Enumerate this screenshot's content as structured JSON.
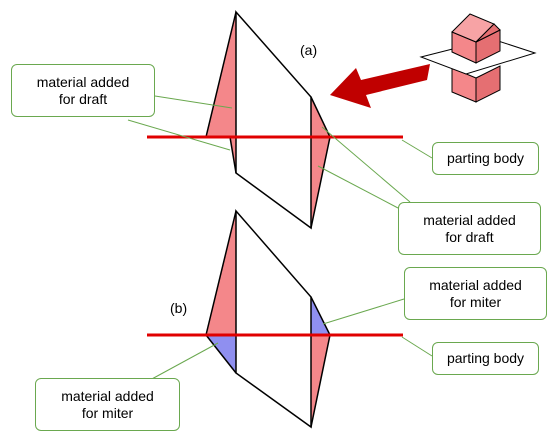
{
  "tags": {
    "a": "(a)",
    "b": "(b)"
  },
  "callouts": {
    "draft_left": {
      "line1": "material added",
      "line2": "for draft"
    },
    "parting_top": {
      "line1": "parting body"
    },
    "draft_right": {
      "line1": "material added",
      "line2": "for draft"
    },
    "miter_right": {
      "line1": "material added",
      "line2": "for miter"
    },
    "parting_bottom": {
      "line1": "parting body"
    },
    "miter_left": {
      "line1": "material added",
      "line2": "for miter"
    }
  },
  "colors": {
    "draft_fill": "#f4878a",
    "miter_fill": "#8f8ff0",
    "parting_line": "#e00000",
    "arrow": "#c00000",
    "leader": "#6aa84f",
    "outline": "#000000"
  }
}
